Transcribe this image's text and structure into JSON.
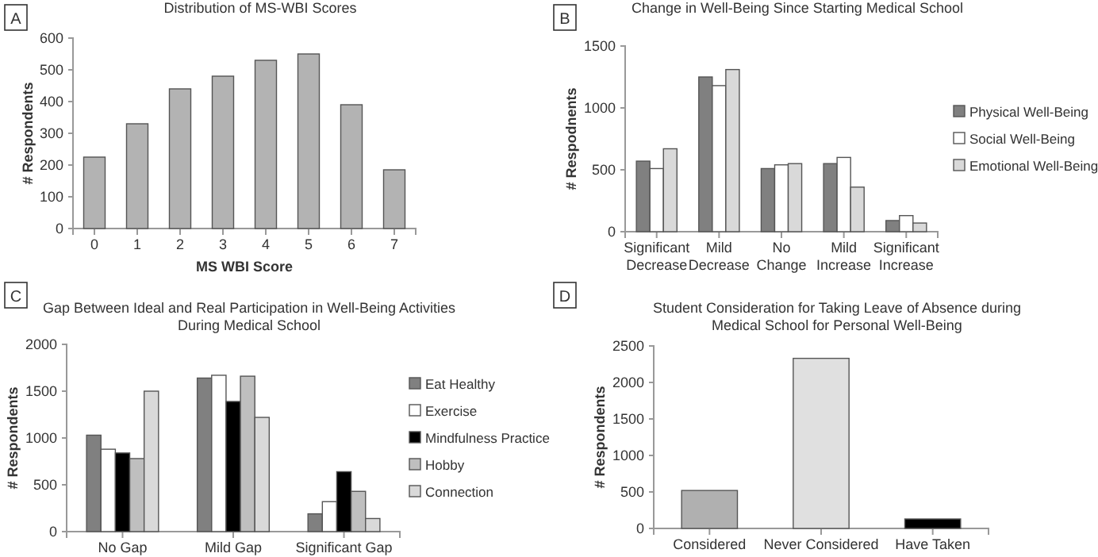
{
  "chart_data": [
    {
      "type": "bar",
      "title": "Distribution of MS-WBI Scores",
      "annotations": [
        "A"
      ],
      "xlabel": "MS WBI Score",
      "ylabel": "# Respondents",
      "categories": [
        "0",
        "1",
        "2",
        "3",
        "4",
        "5",
        "6",
        "7"
      ],
      "values": [
        225,
        330,
        440,
        480,
        530,
        550,
        390,
        185
      ],
      "color": "#b3b3b3",
      "ylim": [
        0,
        600
      ],
      "yticks": [
        0,
        100,
        200,
        300,
        400,
        500,
        600
      ],
      "legend": false,
      "grid": false
    },
    {
      "type": "bar",
      "title": "Change in Well-Being Since Starting Medical School",
      "annotations": [
        "B"
      ],
      "ylabel": "# Respodnents",
      "categories": [
        "Significant Decrease",
        "Mild Decrease",
        "No Change",
        "Mild Increase",
        "Significant Increase"
      ],
      "series": [
        {
          "name": "Physical Well-Being",
          "color": "#808080",
          "values": [
            570,
            1250,
            510,
            550,
            90
          ]
        },
        {
          "name": "Social Well-Being",
          "color": "#ffffff",
          "values": [
            510,
            1180,
            540,
            600,
            130
          ]
        },
        {
          "name": "Emotional Well-Being",
          "color": "#d9d9d9",
          "values": [
            670,
            1310,
            550,
            360,
            70
          ]
        }
      ],
      "ylim": [
        0,
        1500
      ],
      "yticks": [
        0,
        500,
        1000,
        1500
      ],
      "legend": "right",
      "grid": false
    },
    {
      "type": "bar",
      "title": "Gap Between Ideal and Real Participation in Well-Being Activities During Medical School",
      "annotations": [
        "C"
      ],
      "ylabel": "# Respondents",
      "categories": [
        "No Gap",
        "Mild Gap",
        "Significant Gap"
      ],
      "series": [
        {
          "name": "Eat Healthy",
          "color": "#808080",
          "values": [
            1030,
            1640,
            190
          ]
        },
        {
          "name": "Exercise",
          "color": "#ffffff",
          "values": [
            880,
            1670,
            320
          ]
        },
        {
          "name": "Mindfulness Practice",
          "color": "#000000",
          "values": [
            840,
            1390,
            640
          ]
        },
        {
          "name": "Hobby",
          "color": "#bfbfbf",
          "values": [
            780,
            1660,
            430
          ]
        },
        {
          "name": "Connection",
          "color": "#d9d9d9",
          "values": [
            1500,
            1220,
            140
          ]
        }
      ],
      "ylim": [
        0,
        2000
      ],
      "yticks": [
        0,
        500,
        1000,
        1500,
        2000
      ],
      "legend": "right",
      "grid": false
    },
    {
      "type": "bar",
      "title": "Student Consideration for Taking Leave of Absence during Medical School for Personal Well-Being",
      "annotations": [
        "D"
      ],
      "ylabel": "# Respondents",
      "categories": [
        "Considered",
        "Never Considered",
        "Have Taken"
      ],
      "values": [
        520,
        2330,
        130
      ],
      "colors": [
        "#b0b0b0",
        "#e0e0e0",
        "#000000"
      ],
      "ylim": [
        0,
        2500
      ],
      "yticks": [
        0,
        500,
        1000,
        1500,
        2000,
        2500
      ],
      "legend": false,
      "grid": false
    }
  ]
}
